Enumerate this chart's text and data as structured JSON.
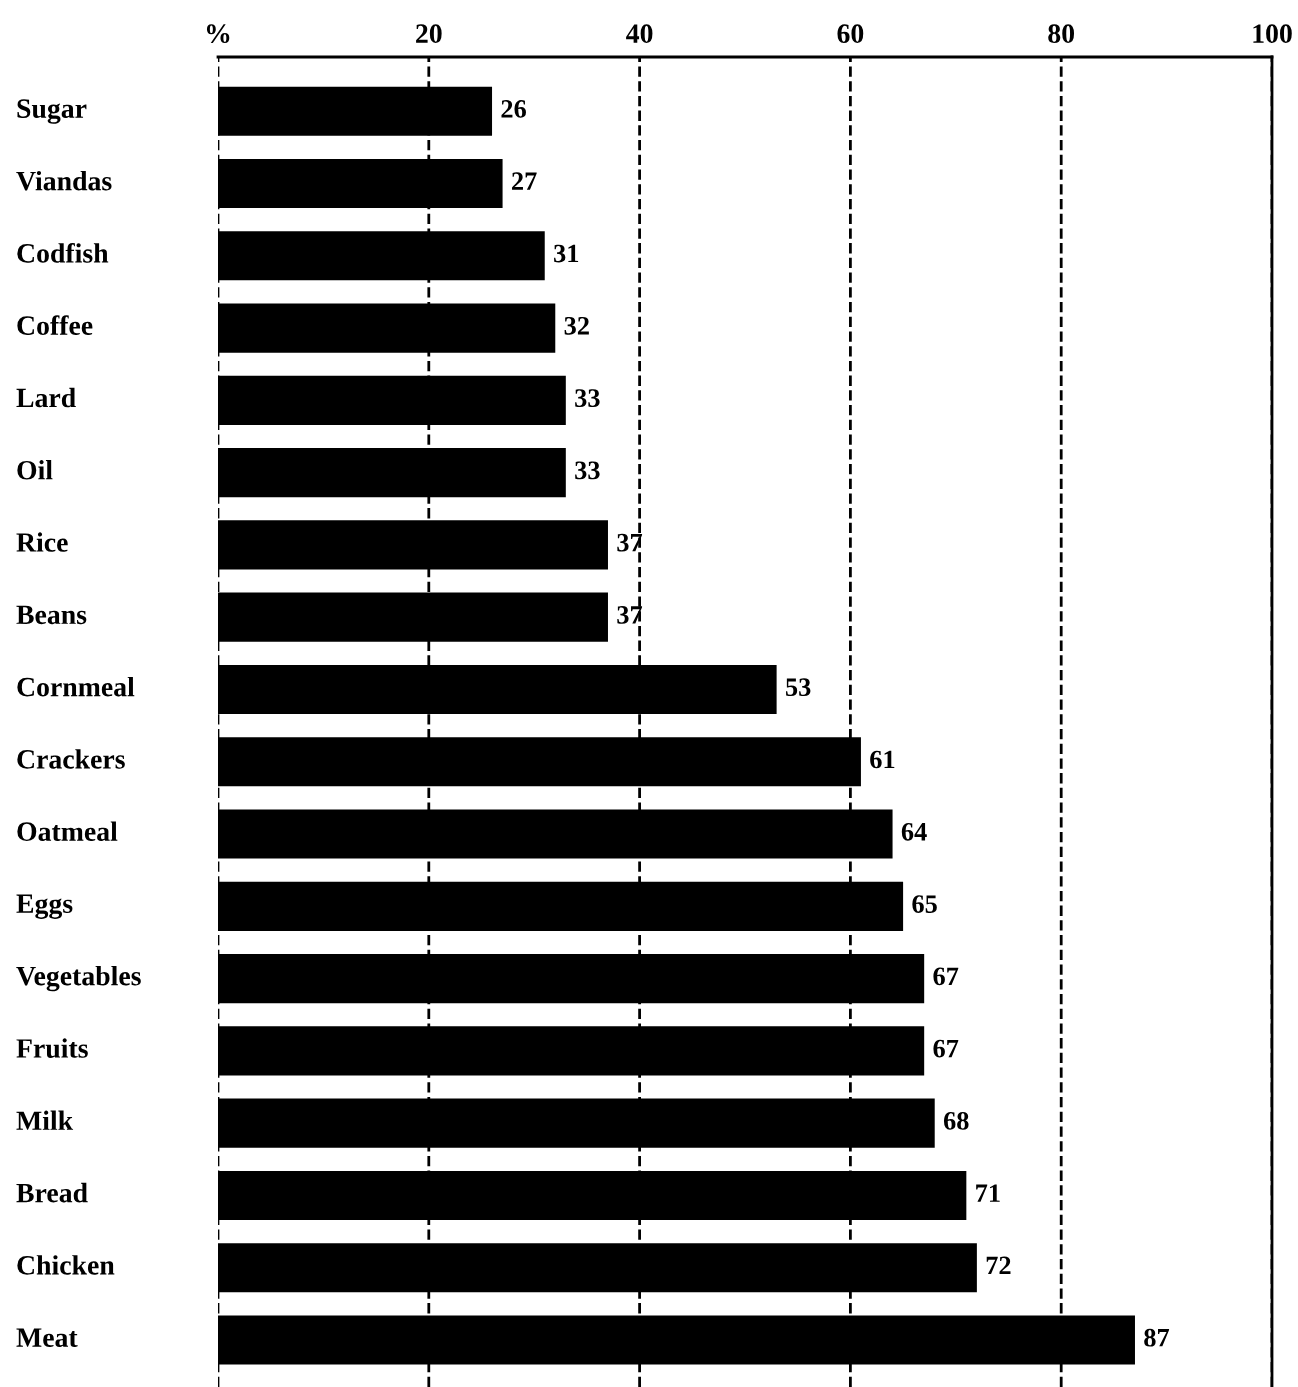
{
  "chart_data": {
    "type": "bar",
    "orientation": "horizontal",
    "categories": [
      "Sugar",
      "Viandas",
      "Codfish",
      "Coffee",
      "Lard",
      "Oil",
      "Rice",
      "Beans",
      "Cornmeal",
      "Crackers",
      "Oatmeal",
      "Eggs",
      "Vegetables",
      "Fruits",
      "Milk",
      "Bread",
      "Chicken",
      "Meat"
    ],
    "values": [
      26,
      27,
      31,
      32,
      33,
      33,
      37,
      37,
      53,
      61,
      64,
      65,
      67,
      67,
      68,
      71,
      72,
      87
    ],
    "color": "#000000",
    "xlim": [
      0,
      100
    ],
    "xticks": [
      {
        "value": 0,
        "label": "%"
      },
      20,
      40,
      60,
      80,
      100
    ],
    "grid": "x",
    "line_style": "dashed",
    "data_labels": true
  }
}
